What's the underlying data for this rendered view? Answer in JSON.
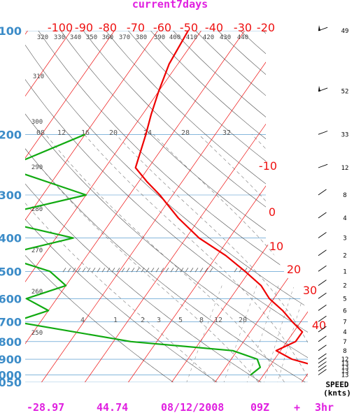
{
  "title": "current7days",
  "footer": {
    "temp": "-28.97",
    "lat": "44.74",
    "date": "08/12/2008",
    "hour": "09Z",
    "plus": "+",
    "fcst": "3hr"
  },
  "chart_data": {
    "type": "skew-t log-p sounding",
    "pressure_levels_hPa": [
      100,
      200,
      300,
      400,
      500,
      600,
      700,
      800,
      900,
      1000,
      1050
    ],
    "pressure_labels": [
      "100",
      "200",
      "300",
      "400",
      "500",
      "600",
      "700",
      "800",
      "900",
      "1000",
      "1050"
    ],
    "temperature_isotherms_C": [
      -100,
      -90,
      -80,
      -70,
      -60,
      -50,
      -40,
      -30,
      -20,
      -10,
      0,
      10,
      20,
      30,
      40
    ],
    "temperature_labels": [
      "-100",
      "-90",
      "-80",
      "-70",
      "-60",
      "-50",
      "-40",
      "-30",
      "-20",
      "-10",
      "0",
      "10",
      "20",
      "30",
      "40"
    ],
    "dry_adiabat_labels_K": [
      "320",
      "330",
      "340",
      "350",
      "360",
      "370",
      "380",
      "390",
      "400",
      "410",
      "420",
      "430",
      "440",
      "310",
      "300",
      "290",
      "280",
      "270",
      "260",
      "250"
    ],
    "mixing_ratio_labels_upper": [
      "08",
      "12",
      "16",
      "20",
      "24",
      "28",
      "32"
    ],
    "mixing_ratio_labels_lower": [
      "4",
      "1",
      "2",
      "3",
      "5",
      "8",
      "12",
      "20"
    ],
    "temperature_profile": [
      {
        "p": 100,
        "t": -73
      },
      {
        "p": 125,
        "t": -72
      },
      {
        "p": 150,
        "t": -70
      },
      {
        "p": 175,
        "t": -68
      },
      {
        "p": 200,
        "t": -66
      },
      {
        "p": 250,
        "t": -63
      },
      {
        "p": 275,
        "t": -58
      },
      {
        "p": 300,
        "t": -53
      },
      {
        "p": 350,
        "t": -45
      },
      {
        "p": 400,
        "t": -37
      },
      {
        "p": 450,
        "t": -28
      },
      {
        "p": 500,
        "t": -21
      },
      {
        "p": 550,
        "t": -15
      },
      {
        "p": 600,
        "t": -11
      },
      {
        "p": 650,
        "t": -6
      },
      {
        "p": 700,
        "t": -2
      },
      {
        "p": 750,
        "t": 2
      },
      {
        "p": 800,
        "t": 2
      },
      {
        "p": 850,
        "t": -1
      },
      {
        "p": 900,
        "t": 4
      },
      {
        "p": 950,
        "t": 12
      },
      {
        "p": 1000,
        "t": 17
      }
    ],
    "dewpoint_profile": [
      {
        "p": 200,
        "t": -80
      },
      {
        "p": 250,
        "t": -93
      },
      {
        "p": 300,
        "t": -70
      },
      {
        "p": 350,
        "t": -89
      },
      {
        "p": 400,
        "t": -66
      },
      {
        "p": 450,
        "t": -80
      },
      {
        "p": 500,
        "t": -66
      },
      {
        "p": 550,
        "t": -60
      },
      {
        "p": 600,
        "t": -67
      },
      {
        "p": 650,
        "t": -60
      },
      {
        "p": 700,
        "t": -66
      },
      {
        "p": 800,
        "t": -36
      },
      {
        "p": 850,
        "t": -11
      },
      {
        "p": 900,
        "t": -4
      },
      {
        "p": 950,
        "t": -2
      },
      {
        "p": 1000,
        "t": -3
      }
    ],
    "wind_speed_label": "SPEED",
    "wind_unit_label": "(knts)",
    "wind_profile": [
      {
        "p": 100,
        "speed": "49"
      },
      {
        "p": 150,
        "speed": "52"
      },
      {
        "p": 200,
        "speed": "33"
      },
      {
        "p": 250,
        "speed": "12"
      },
      {
        "p": 300,
        "speed": "8"
      },
      {
        "p": 350,
        "speed": "4"
      },
      {
        "p": 400,
        "speed": "3"
      },
      {
        "p": 450,
        "speed": "2"
      },
      {
        "p": 500,
        "speed": "1"
      },
      {
        "p": 550,
        "speed": "2"
      },
      {
        "p": 600,
        "speed": "5"
      },
      {
        "p": 650,
        "speed": "6"
      },
      {
        "p": 700,
        "speed": "7"
      },
      {
        "p": 750,
        "speed": "4"
      },
      {
        "p": 800,
        "speed": "7"
      },
      {
        "p": 850,
        "speed": "8"
      },
      {
        "p": 900,
        "speed": "12"
      },
      {
        "p": 925,
        "speed": "13"
      },
      {
        "p": 950,
        "speed": "13"
      },
      {
        "p": 975,
        "speed": "13"
      },
      {
        "p": 1000,
        "speed": "13"
      }
    ],
    "colors": {
      "isotherm": "#ee1111",
      "isobar": "#3c8cc8",
      "dry_adiabat": "#444444",
      "moist_adiabat": "#777777",
      "mixing_ratio": "#777777",
      "temperature": "#ee0000",
      "dewpoint": "#11aa11",
      "title": "#e020e0"
    }
  }
}
